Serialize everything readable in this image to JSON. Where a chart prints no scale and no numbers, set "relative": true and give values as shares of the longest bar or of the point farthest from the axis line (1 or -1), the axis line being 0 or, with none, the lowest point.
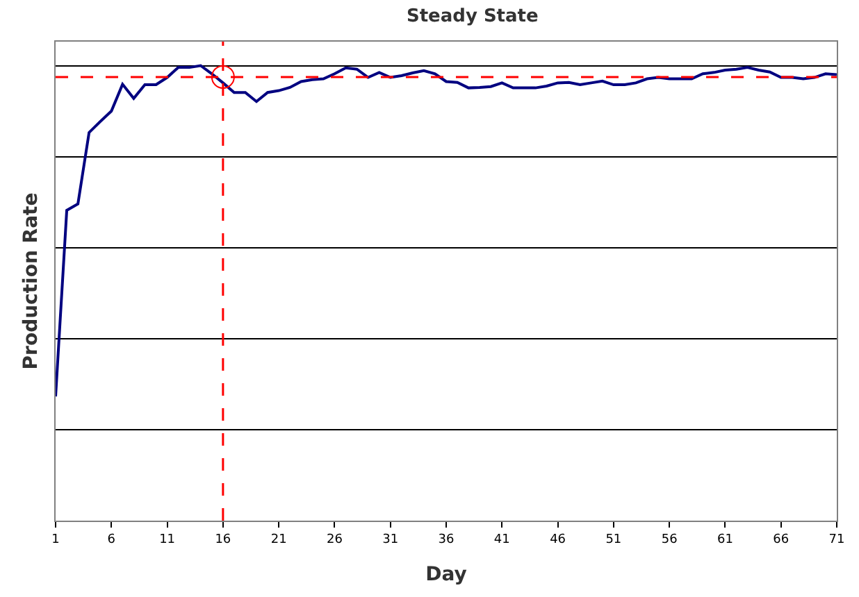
{
  "chart_data": {
    "type": "line",
    "title": "Steady State",
    "xlabel": "Day",
    "ylabel": "Production Rate",
    "relative": true,
    "x": [
      1,
      2,
      3,
      4,
      5,
      6,
      7,
      8,
      9,
      10,
      11,
      12,
      13,
      14,
      15,
      16,
      17,
      18,
      19,
      20,
      21,
      22,
      23,
      24,
      25,
      26,
      27,
      28,
      29,
      30,
      31,
      32,
      33,
      34,
      35,
      36,
      37,
      38,
      39,
      40,
      41,
      42,
      43,
      44,
      45,
      46,
      47,
      48,
      49,
      50,
      51,
      52,
      53,
      54,
      55,
      56,
      57,
      58,
      59,
      60,
      61,
      62,
      63,
      64,
      65,
      66,
      67,
      68,
      69,
      70,
      71
    ],
    "xlim": [
      1,
      71
    ],
    "xticks": [
      1,
      6,
      11,
      16,
      21,
      26,
      31,
      36,
      41,
      46,
      51,
      56,
      61,
      66,
      71
    ],
    "series": [
      {
        "color": "#000080",
        "values": [
          0.273,
          0.682,
          0.696,
          0.853,
          0.877,
          0.9,
          0.959,
          0.928,
          0.958,
          0.958,
          0.974,
          0.996,
          0.996,
          1,
          0.982,
          0.962,
          0.941,
          0.941,
          0.921,
          0.941,
          0.945,
          0.952,
          0.965,
          0.969,
          0.971,
          0.982,
          0.995,
          0.992,
          0.974,
          0.985,
          0.974,
          0.978,
          0.984,
          0.989,
          0.982,
          0.965,
          0.963,
          0.951,
          0.952,
          0.954,
          0.962,
          0.951,
          0.951,
          0.951,
          0.955,
          0.962,
          0.963,
          0.958,
          0.962,
          0.966,
          0.958,
          0.958,
          0.962,
          0.971,
          0.974,
          0.971,
          0.971,
          0.971,
          0.982,
          0.985,
          0.99,
          0.992,
          0.996,
          0.99,
          0.986,
          0.974,
          0.974,
          0.971,
          0.974,
          0.982,
          0.98
        ]
      }
    ],
    "ref_lines": [
      {
        "axis": "y",
        "value": 0.975,
        "color": "#ff0000",
        "line_style": "dashed"
      },
      {
        "axis": "x",
        "value": 16,
        "color": "#ff0000",
        "line_style": "dashed"
      }
    ],
    "grid": "y",
    "marker": "none",
    "line_style": "solid"
  }
}
